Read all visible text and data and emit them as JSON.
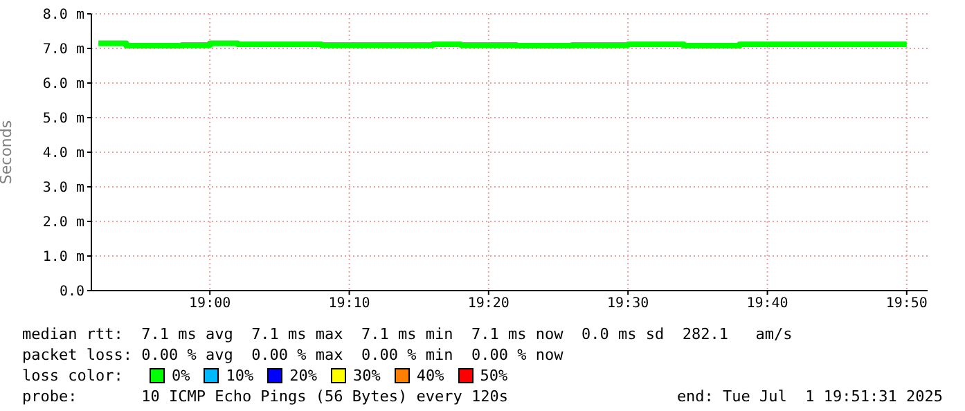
{
  "chart_data": {
    "type": "step",
    "ylabel": "Seconds",
    "legend_title": "loss color:",
    "legend": "bottom",
    "grid": true,
    "marker": "none",
    "x": [
      18.8667,
      18.9,
      18.9333,
      18.9667,
      19.0,
      19.0333,
      19.0667,
      19.1,
      19.1333,
      19.1667,
      19.2,
      19.2333,
      19.2667,
      19.3,
      19.3333,
      19.3667,
      19.4,
      19.4333,
      19.4667,
      19.5,
      19.5333,
      19.5667,
      19.6,
      19.6333,
      19.6667,
      19.7,
      19.7333,
      19.7667,
      19.8,
      19.8333
    ],
    "xlim": [
      18.8583,
      19.8583
    ],
    "xticks": [
      {
        "value": 19.0,
        "label": "19:00"
      },
      {
        "value": 19.1667,
        "label": "19:10"
      },
      {
        "value": 19.3333,
        "label": "19:20"
      },
      {
        "value": 19.5,
        "label": "19:30"
      },
      {
        "value": 19.6667,
        "label": "19:40"
      },
      {
        "value": 19.8333,
        "label": "19:50"
      }
    ],
    "ylim": [
      0,
      8
    ],
    "yticks": [
      {
        "value": 0,
        "label": "0.0"
      },
      {
        "value": 1,
        "label": "1.0 m"
      },
      {
        "value": 2,
        "label": "2.0 m"
      },
      {
        "value": 3,
        "label": "3.0 m"
      },
      {
        "value": 4,
        "label": "4.0 m"
      },
      {
        "value": 5,
        "label": "5.0 m"
      },
      {
        "value": 6,
        "label": "6.0 m"
      },
      {
        "value": 7,
        "label": "7.0 m"
      },
      {
        "value": 8,
        "label": "8.0 m"
      }
    ],
    "series": [
      {
        "name": "0%",
        "color": "#00ff00",
        "values": [
          7.15,
          7.08,
          7.08,
          7.1,
          7.15,
          7.12,
          7.12,
          7.12,
          7.1,
          7.1,
          7.1,
          7.1,
          7.12,
          7.1,
          7.1,
          7.08,
          7.08,
          7.1,
          7.1,
          7.12,
          7.12,
          7.08,
          7.08,
          7.12,
          7.12,
          7.12,
          7.12,
          7.12,
          7.12,
          7.12
        ]
      },
      {
        "name": "10%",
        "color": "#00b8ff",
        "values": [
          null,
          null,
          null,
          null,
          null,
          null,
          null,
          null,
          null,
          null,
          null,
          null,
          null,
          null,
          null,
          null,
          null,
          null,
          null,
          null,
          null,
          null,
          null,
          null,
          null,
          null,
          null,
          null,
          null,
          null
        ]
      },
      {
        "name": "20%",
        "color": "#0000ff",
        "values": [
          null,
          null,
          null,
          null,
          null,
          null,
          null,
          null,
          null,
          null,
          null,
          null,
          null,
          null,
          null,
          null,
          null,
          null,
          null,
          null,
          null,
          null,
          null,
          null,
          null,
          null,
          null,
          null,
          null,
          null
        ]
      },
      {
        "name": "30%",
        "color": "#ffff00",
        "values": [
          null,
          null,
          null,
          null,
          null,
          null,
          null,
          null,
          null,
          null,
          null,
          null,
          null,
          null,
          null,
          null,
          null,
          null,
          null,
          null,
          null,
          null,
          null,
          null,
          null,
          null,
          null,
          null,
          null,
          null
        ]
      },
      {
        "name": "40%",
        "color": "#ff8000",
        "values": [
          null,
          null,
          null,
          null,
          null,
          null,
          null,
          null,
          null,
          null,
          null,
          null,
          null,
          null,
          null,
          null,
          null,
          null,
          null,
          null,
          null,
          null,
          null,
          null,
          null,
          null,
          null,
          null,
          null,
          null
        ]
      },
      {
        "name": "50%",
        "color": "#ff0000",
        "values": [
          null,
          null,
          null,
          null,
          null,
          null,
          null,
          null,
          null,
          null,
          null,
          null,
          null,
          null,
          null,
          null,
          null,
          null,
          null,
          null,
          null,
          null,
          null,
          null,
          null,
          null,
          null,
          null,
          null,
          null
        ]
      }
    ],
    "annotations": [
      "median rtt:  7.1 ms avg  7.1 ms max  7.1 ms min  7.1 ms now  0.0 ms sd  282.1   am/s",
      "packet loss: 0.00 % avg  0.00 % max  0.00 % min  0.00 % now",
      "probe:       10 ICMP Echo Pings (56 Bytes) every 120s",
      "end: Tue Jul  1 19:51:31 2025"
    ]
  }
}
